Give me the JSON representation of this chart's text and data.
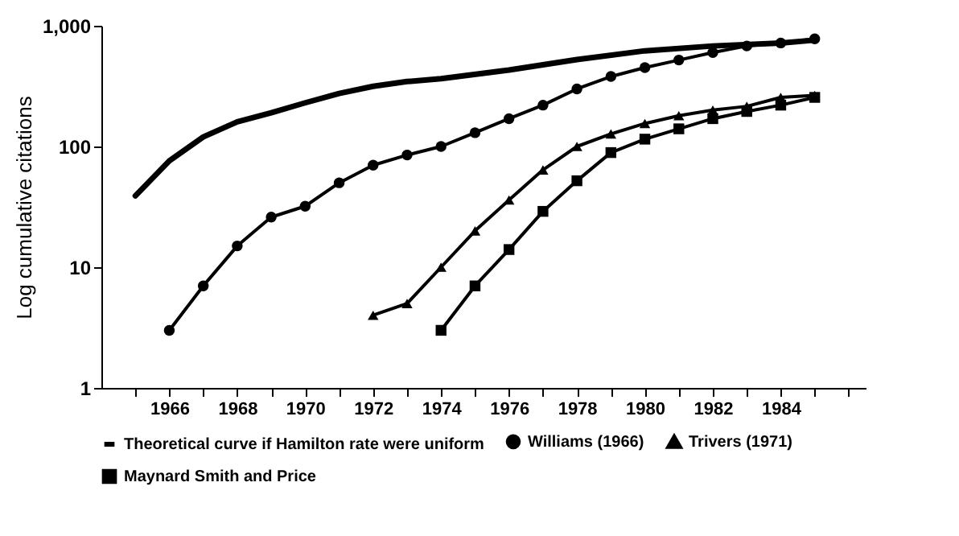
{
  "chart_data": {
    "type": "line",
    "ylabel": "Log cumulative citations",
    "log": "y",
    "legend": "bottom",
    "grid": false,
    "xlim": [
      1964,
      1986.5
    ],
    "xticks": [
      {
        "value": 1965,
        "label": null
      },
      1966,
      {
        "value": 1967,
        "label": null
      },
      1968,
      {
        "value": 1969,
        "label": null
      },
      1970,
      {
        "value": 1971,
        "label": null
      },
      1972,
      {
        "value": 1973,
        "label": null
      },
      1974,
      {
        "value": 1975,
        "label": null
      },
      1976,
      {
        "value": 1977,
        "label": null
      },
      1978,
      {
        "value": 1979,
        "label": null
      },
      1980,
      {
        "value": 1981,
        "label": null
      },
      1982,
      {
        "value": 1983,
        "label": null
      },
      1984,
      {
        "value": 1985,
        "label": null
      },
      {
        "value": 1986,
        "label": null
      }
    ],
    "ylim": [
      1,
      1000
    ],
    "yticks": [
      1,
      10,
      100,
      {
        "value": 1000,
        "label": "1,000"
      }
    ],
    "series": [
      {
        "name": "Theoretical curve if Hamilton rate were uniform",
        "color": "#000000",
        "marker": "none",
        "x": [
          1965,
          1966,
          1967,
          1968,
          1969,
          1970,
          1971,
          1972,
          1973,
          1974,
          1976,
          1978,
          1980,
          1982,
          1984,
          1985
        ],
        "values": [
          39,
          76,
          120,
          160,
          190,
          230,
          275,
          315,
          345,
          365,
          430,
          525,
          620,
          680,
          720,
          760
        ]
      },
      {
        "name": "Williams (1966)",
        "color": "#000000",
        "marker": "circle",
        "x": [
          1966,
          1967,
          1968,
          1969,
          1970,
          1971,
          1972,
          1973,
          1974,
          1975,
          1976,
          1977,
          1978,
          1979,
          1980,
          1981,
          1982,
          1983,
          1984,
          1985
        ],
        "values": [
          3,
          7,
          15,
          26,
          32,
          50,
          70,
          85,
          100,
          130,
          170,
          220,
          300,
          380,
          450,
          520,
          600,
          680,
          720,
          780
        ]
      },
      {
        "name": "Trivers (1971)",
        "color": "#000000",
        "marker": "triangle",
        "x": [
          1972,
          1973,
          1974,
          1975,
          1976,
          1977,
          1978,
          1979,
          1980,
          1981,
          1982,
          1983,
          1984,
          1985
        ],
        "values": [
          4,
          5,
          10,
          20,
          36,
          64,
          100,
          127,
          155,
          180,
          200,
          215,
          255,
          265
        ]
      },
      {
        "name": "Maynard Smith and Price",
        "color": "#000000",
        "marker": "square",
        "x": [
          1974,
          1975,
          1976,
          1977,
          1978,
          1979,
          1980,
          1981,
          1982,
          1983,
          1984,
          1985
        ],
        "values": [
          3,
          7,
          14,
          29,
          52,
          89,
          115,
          140,
          170,
          195,
          220,
          255
        ]
      }
    ]
  }
}
